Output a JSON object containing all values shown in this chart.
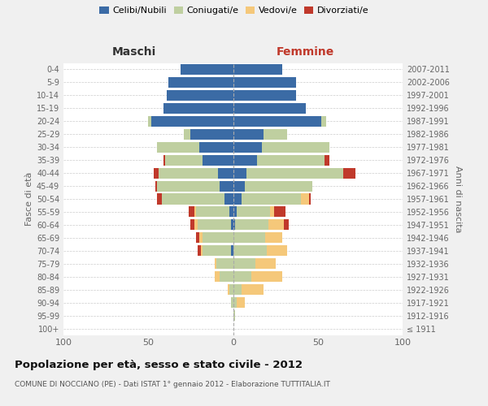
{
  "age_groups": [
    "100+",
    "95-99",
    "90-94",
    "85-89",
    "80-84",
    "75-79",
    "70-74",
    "65-69",
    "60-64",
    "55-59",
    "50-54",
    "45-49",
    "40-44",
    "35-39",
    "30-34",
    "25-29",
    "20-24",
    "15-19",
    "10-14",
    "5-9",
    "0-4"
  ],
  "birth_years": [
    "≤ 1911",
    "1912-1916",
    "1917-1921",
    "1922-1926",
    "1927-1931",
    "1932-1936",
    "1937-1941",
    "1942-1946",
    "1947-1951",
    "1952-1956",
    "1957-1961",
    "1962-1966",
    "1967-1971",
    "1972-1976",
    "1977-1981",
    "1982-1986",
    "1987-1991",
    "1992-1996",
    "1997-2001",
    "2002-2006",
    "2007-2011"
  ],
  "male": {
    "celibi": [
      0,
      0,
      0,
      0,
      0,
      0,
      1,
      0,
      1,
      2,
      5,
      8,
      9,
      18,
      20,
      25,
      48,
      41,
      39,
      38,
      31
    ],
    "coniugati": [
      0,
      0,
      1,
      2,
      8,
      10,
      17,
      18,
      20,
      20,
      37,
      37,
      35,
      22,
      25,
      4,
      2,
      0,
      0,
      0,
      0
    ],
    "vedovi": [
      0,
      0,
      0,
      1,
      3,
      1,
      1,
      2,
      2,
      1,
      0,
      0,
      0,
      0,
      0,
      0,
      0,
      0,
      0,
      0,
      0
    ],
    "divorziati": [
      0,
      0,
      0,
      0,
      0,
      0,
      2,
      2,
      2,
      3,
      3,
      1,
      3,
      1,
      0,
      0,
      0,
      0,
      0,
      0,
      0
    ]
  },
  "female": {
    "nubili": [
      0,
      0,
      0,
      0,
      0,
      0,
      0,
      0,
      1,
      2,
      5,
      7,
      8,
      14,
      17,
      18,
      52,
      43,
      37,
      37,
      29
    ],
    "coniugate": [
      0,
      1,
      2,
      5,
      11,
      13,
      20,
      19,
      20,
      20,
      35,
      40,
      57,
      40,
      40,
      14,
      3,
      0,
      0,
      0,
      0
    ],
    "vedove": [
      0,
      0,
      5,
      13,
      18,
      12,
      12,
      10,
      9,
      2,
      5,
      0,
      0,
      0,
      0,
      0,
      0,
      0,
      0,
      0,
      0
    ],
    "divorziate": [
      0,
      0,
      0,
      0,
      0,
      0,
      0,
      0,
      3,
      7,
      1,
      0,
      7,
      3,
      0,
      0,
      0,
      0,
      0,
      0,
      0
    ]
  },
  "colors": {
    "celibi": "#3b6ba5",
    "coniugati": "#bfcfa0",
    "vedovi": "#f5c87a",
    "divorziati": "#c0392b"
  },
  "xlim": 100,
  "title": "Popolazione per età, sesso e stato civile - 2012",
  "subtitle": "COMUNE DI NOCCIANO (PE) - Dati ISTAT 1° gennaio 2012 - Elaborazione TUTTITALIA.IT",
  "ylabel_left": "Fasce di età",
  "ylabel_right": "Anni di nascita",
  "xlabel_left": "Maschi",
  "xlabel_right": "Femmine",
  "bg_color": "#f0f0f0",
  "plot_bg": "#ffffff",
  "legend_labels": [
    "Celibi/Nubili",
    "Coniugati/e",
    "Vedovi/e",
    "Divorziati/e"
  ]
}
